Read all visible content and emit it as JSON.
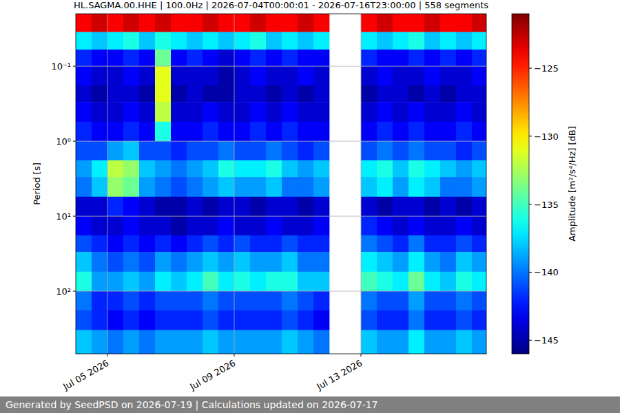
{
  "chart_data": {
    "type": "heatmap",
    "title": "HL.SAGMA.00.HHE | 100.0Hz | 2026-07-04T00:00:01 - 2026-07-16T23:00:00 | 558 segments",
    "y_label": "Period [s]",
    "colorbar_label": "Amplitude [m²/s⁴/Hz] [dB]",
    "x": [
      "2026-07-04T00:00",
      "2026-07-04T12:00",
      "2026-07-05T00:00",
      "2026-07-05T12:00",
      "2026-07-06T00:00",
      "2026-07-06T12:00",
      "2026-07-07T00:00",
      "2026-07-07T12:00",
      "2026-07-08T00:00",
      "2026-07-08T12:00",
      "2026-07-09T00:00",
      "2026-07-09T12:00",
      "2026-07-10T00:00",
      "2026-07-10T12:00",
      "2026-07-11T00:00",
      "2026-07-11T12:00",
      "2026-07-12T00:00",
      "2026-07-12T12:00",
      "2026-07-13T00:00",
      "2026-07-13T12:00",
      "2026-07-14T00:00",
      "2026-07-14T12:00",
      "2026-07-15T00:00",
      "2026-07-15T12:00",
      "2026-07-16T00:00",
      "2026-07-16T12:00"
    ],
    "xlim": [
      "2026-07-04T00:00:01",
      "2026-07-16T23:00:00"
    ],
    "xticks": [
      {
        "value": "2026-07-05",
        "label": "Jul 05 2026"
      },
      {
        "value": "2026-07-09",
        "label": "Jul 09 2026"
      },
      {
        "value": "2026-07-13",
        "label": "Jul 13 2026"
      }
    ],
    "y_edges": [
      0.02,
      0.035,
      0.06,
      0.1,
      0.18,
      0.3,
      0.55,
      1,
      1.8,
      3,
      5.5,
      10,
      18,
      30,
      55,
      100,
      180,
      330,
      684
    ],
    "ylim": [
      684,
      0.02
    ],
    "yticks": [
      {
        "value": 0.1,
        "label": "10⁻¹"
      },
      {
        "value": 1,
        "label": "10⁰"
      },
      {
        "value": 10,
        "label": "10¹"
      },
      {
        "value": 100,
        "label": "10²"
      }
    ],
    "log": "y",
    "grid": true,
    "z": [
      [
        -124,
        -123,
        -124,
        -123,
        -124,
        -123,
        -124,
        -124,
        -123,
        -124,
        -124,
        -123,
        -124,
        -124,
        -123,
        -124,
        null,
        null,
        -124,
        -123,
        -124,
        -124,
        -123,
        -124,
        -124,
        -123
      ],
      [
        -137,
        -138,
        -137,
        -136,
        -138,
        -136,
        -137,
        -138,
        -137,
        -138,
        -137,
        -136,
        -138,
        -137,
        -138,
        -137,
        null,
        null,
        -137,
        -138,
        -137,
        -136,
        -138,
        -137,
        -138,
        -137
      ],
      [
        -142,
        -143,
        -143,
        -142,
        -143,
        -134,
        -143,
        -142,
        -143,
        -144,
        -143,
        -142,
        -143,
        -142,
        -143,
        -143,
        null,
        null,
        -142,
        -143,
        -143,
        -142,
        -143,
        -142,
        -143,
        -142
      ],
      [
        -143,
        -144,
        -144,
        -143,
        -144,
        -131,
        -144,
        -144,
        -144,
        -145,
        -144,
        -143,
        -144,
        -144,
        -143,
        -144,
        null,
        null,
        -144,
        -143,
        -144,
        -144,
        -143,
        -144,
        -144,
        -143
      ],
      [
        -144,
        -145,
        -144,
        -144,
        -145,
        -131,
        -145,
        -144,
        -145,
        -145,
        -144,
        -144,
        -145,
        -144,
        -145,
        -144,
        null,
        null,
        -145,
        -144,
        -144,
        -145,
        -144,
        -145,
        -144,
        -144
      ],
      [
        -143,
        -144,
        -144,
        -143,
        -144,
        -132,
        -144,
        -144,
        -143,
        -144,
        -144,
        -143,
        -144,
        -143,
        -144,
        -144,
        null,
        null,
        -144,
        -143,
        -144,
        -143,
        -144,
        -144,
        -143,
        -144
      ],
      [
        -142,
        -143,
        -143,
        -142,
        -143,
        -136,
        -143,
        -143,
        -142,
        -143,
        -143,
        -142,
        -143,
        -142,
        -143,
        -143,
        null,
        null,
        -143,
        -142,
        -143,
        -142,
        -143,
        -143,
        -142,
        -143
      ],
      [
        -141,
        -141,
        -139,
        -138,
        -141,
        -141,
        -142,
        -141,
        -141,
        -140,
        -141,
        -141,
        -140,
        -141,
        -142,
        -141,
        null,
        null,
        -141,
        -140,
        -141,
        -140,
        -141,
        -141,
        -142,
        -141
      ],
      [
        -139,
        -137,
        -132,
        -133,
        -138,
        -139,
        -140,
        -139,
        -138,
        -136,
        -137,
        -137,
        -136,
        -138,
        -139,
        -138,
        null,
        null,
        -137,
        -136,
        -138,
        -136,
        -137,
        -138,
        -139,
        -138
      ],
      [
        -140,
        -138,
        -133,
        -134,
        -139,
        -140,
        -141,
        -140,
        -139,
        -138,
        -139,
        -139,
        -138,
        -140,
        -140,
        -139,
        null,
        null,
        -138,
        -137,
        -139,
        -137,
        -138,
        -140,
        -140,
        -139
      ],
      [
        -144,
        -144,
        -142,
        -143,
        -144,
        -145,
        -145,
        -144,
        -145,
        -144,
        -144,
        -145,
        -144,
        -144,
        -145,
        -144,
        null,
        null,
        -144,
        -145,
        -144,
        -144,
        -145,
        -144,
        -145,
        -144
      ],
      [
        -143,
        -144,
        -144,
        -143,
        -144,
        -144,
        -145,
        -144,
        -144,
        -143,
        -144,
        -144,
        -143,
        -144,
        -144,
        -143,
        null,
        null,
        -142,
        -143,
        -144,
        -143,
        -144,
        -144,
        -143,
        -144
      ],
      [
        -141,
        -142,
        -143,
        -142,
        -143,
        -142,
        -143,
        -142,
        -141,
        -142,
        -141,
        -142,
        -142,
        -141,
        -142,
        -142,
        null,
        null,
        -140,
        -141,
        -142,
        -140,
        -142,
        -142,
        -141,
        -142
      ],
      [
        -138,
        -140,
        -141,
        -140,
        -141,
        -139,
        -140,
        -139,
        -138,
        -139,
        -138,
        -139,
        -139,
        -138,
        -140,
        -140,
        null,
        null,
        -137,
        -138,
        -139,
        -137,
        -139,
        -140,
        -138,
        -139
      ],
      [
        -136,
        -139,
        -139,
        -138,
        -139,
        -137,
        -138,
        -137,
        -135,
        -137,
        -136,
        -137,
        -136,
        -136,
        -138,
        -138,
        null,
        null,
        -135,
        -136,
        -137,
        -134,
        -137,
        -138,
        -136,
        -137
      ],
      [
        -140,
        -142,
        -142,
        -141,
        -142,
        -141,
        -141,
        -141,
        -140,
        -141,
        -141,
        -141,
        -141,
        -140,
        -141,
        -142,
        null,
        null,
        -140,
        -141,
        -141,
        -139,
        -141,
        -141,
        -140,
        -141
      ],
      [
        -141,
        -142,
        -143,
        -142,
        -143,
        -142,
        -142,
        -142,
        -141,
        -142,
        -142,
        -142,
        -142,
        -141,
        -142,
        -143,
        null,
        null,
        -141,
        -142,
        -142,
        -140,
        -142,
        -142,
        -141,
        -142
      ],
      [
        -138,
        -139,
        -140,
        -139,
        -140,
        -139,
        -139,
        -139,
        -138,
        -139,
        -139,
        -139,
        -139,
        -138,
        -139,
        -140,
        null,
        null,
        -138,
        -139,
        -139,
        -137,
        -139,
        -139,
        -138,
        -139
      ]
    ],
    "clim": [
      -146,
      -121
    ],
    "cticks": [
      {
        "value": -125,
        "label": "−125"
      },
      {
        "value": -130,
        "label": "−130"
      },
      {
        "value": -135,
        "label": "−135"
      },
      {
        "value": -140,
        "label": "−140"
      },
      {
        "value": -145,
        "label": "−145"
      }
    ]
  },
  "footer": {
    "text": "Generated by SeedPSD on 2026-07-19 | Calculations updated on 2026-07-17"
  }
}
